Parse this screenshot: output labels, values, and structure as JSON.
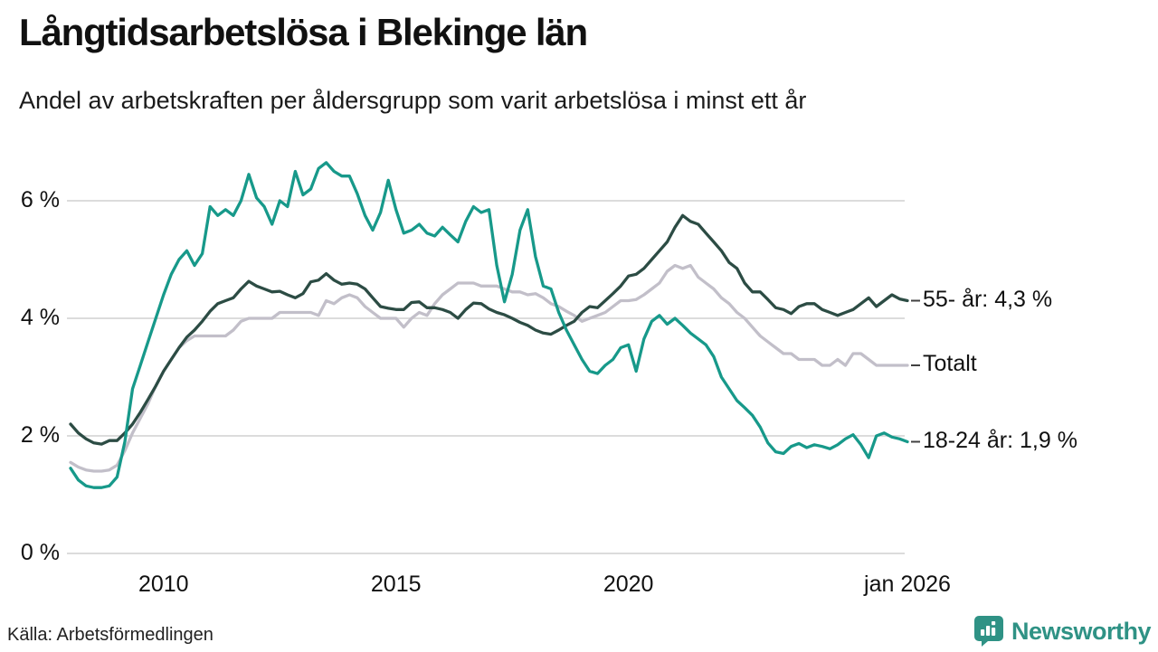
{
  "header": {
    "title": "Långtidsarbetslösa i Blekinge län",
    "subtitle": "Andel av arbetskraften per åldersgrupp som varit arbetslösa i minst ett år"
  },
  "footer": {
    "source": "Källa: Arbetsförmedlingen",
    "brand": "Newsworthy"
  },
  "colors": {
    "series_55": "#2c4c44",
    "series_total": "#c2bfc9",
    "series_18_24": "#17998a",
    "gridline": "#dcdcdc",
    "tick_dash": "#404040",
    "text": "#111111",
    "brand_teal": "#2f9285"
  },
  "chart_data": {
    "type": "line",
    "title": "Långtidsarbetslösa i Blekinge län",
    "subtitle": "Andel av arbetskraften per åldersgrupp som varit arbetslösa i minst ett år",
    "unit": "%",
    "x_start_year": 2008.0,
    "x_step_months": 2,
    "x_axis": {
      "range": [
        2008,
        2026
      ],
      "ticks": [
        {
          "year": 2010,
          "label": "2010"
        },
        {
          "year": 2015,
          "label": "2015"
        },
        {
          "year": 2020,
          "label": "2020"
        },
        {
          "year": 2026,
          "label": "jan 2026"
        }
      ]
    },
    "y_axis": {
      "range": [
        0,
        7
      ],
      "grid": true,
      "ticks": [
        {
          "value": 0,
          "label": "0 %"
        },
        {
          "value": 2,
          "label": "2 %"
        },
        {
          "value": 4,
          "label": "4 %"
        },
        {
          "value": 6,
          "label": "6 %"
        }
      ]
    },
    "legend_position": "right-end-labels",
    "series": [
      {
        "name": "55- år",
        "end_label": "55- år: 4,3 %",
        "last_value": 4.3,
        "color": "#2c4c44",
        "z": 2,
        "values": [
          2.2,
          2.05,
          1.95,
          1.88,
          1.86,
          1.92,
          1.92,
          2.05,
          2.2,
          2.4,
          2.62,
          2.85,
          3.1,
          3.3,
          3.5,
          3.68,
          3.8,
          3.95,
          4.12,
          4.25,
          4.3,
          4.35,
          4.5,
          4.63,
          4.55,
          4.5,
          4.45,
          4.46,
          4.4,
          4.35,
          4.42,
          4.62,
          4.65,
          4.76,
          4.65,
          4.58,
          4.6,
          4.58,
          4.5,
          4.35,
          4.2,
          4.17,
          4.15,
          4.15,
          4.27,
          4.28,
          4.18,
          4.18,
          4.15,
          4.1,
          4.0,
          4.15,
          4.26,
          4.25,
          4.16,
          4.1,
          4.06,
          4.0,
          3.93,
          3.88,
          3.8,
          3.75,
          3.73,
          3.8,
          3.88,
          3.95,
          4.1,
          4.2,
          4.18,
          4.3,
          4.42,
          4.55,
          4.72,
          4.75,
          4.85,
          5.0,
          5.15,
          5.3,
          5.55,
          5.75,
          5.65,
          5.6,
          5.45,
          5.3,
          5.15,
          4.95,
          4.85,
          4.6,
          4.45,
          4.45,
          4.32,
          4.18,
          4.15,
          4.08,
          4.2,
          4.25,
          4.25,
          4.15,
          4.1,
          4.05,
          4.1,
          4.15,
          4.25,
          4.35,
          4.2,
          4.3,
          4.4,
          4.33,
          4.3
        ]
      },
      {
        "name": "Totalt",
        "end_label": "Totalt",
        "last_value": 3.2,
        "color": "#c2bfc9",
        "z": 1,
        "values": [
          1.55,
          1.47,
          1.42,
          1.4,
          1.4,
          1.42,
          1.5,
          1.75,
          2.05,
          2.3,
          2.55,
          2.85,
          3.1,
          3.3,
          3.5,
          3.62,
          3.7,
          3.7,
          3.7,
          3.7,
          3.7,
          3.8,
          3.95,
          4.0,
          4.0,
          4.0,
          4.0,
          4.1,
          4.1,
          4.1,
          4.1,
          4.1,
          4.05,
          4.3,
          4.25,
          4.35,
          4.4,
          4.35,
          4.2,
          4.1,
          4.0,
          4.0,
          4.0,
          3.85,
          4.0,
          4.1,
          4.05,
          4.25,
          4.4,
          4.5,
          4.6,
          4.6,
          4.6,
          4.55,
          4.55,
          4.55,
          4.5,
          4.45,
          4.45,
          4.4,
          4.42,
          4.35,
          4.25,
          4.2,
          4.12,
          4.05,
          3.95,
          4.0,
          4.05,
          4.1,
          4.2,
          4.3,
          4.3,
          4.32,
          4.4,
          4.5,
          4.6,
          4.8,
          4.9,
          4.85,
          4.9,
          4.7,
          4.6,
          4.5,
          4.35,
          4.25,
          4.1,
          4.0,
          3.85,
          3.7,
          3.6,
          3.5,
          3.4,
          3.4,
          3.3,
          3.3,
          3.3,
          3.2,
          3.2,
          3.3,
          3.2,
          3.4,
          3.4,
          3.3,
          3.2,
          3.2,
          3.2,
          3.2,
          3.2
        ]
      },
      {
        "name": "18-24 år",
        "end_label": "18-24 år: 1,9 %",
        "last_value": 1.9,
        "color": "#17998a",
        "z": 3,
        "values": [
          1.45,
          1.25,
          1.15,
          1.12,
          1.12,
          1.15,
          1.3,
          1.9,
          2.8,
          3.2,
          3.6,
          4.0,
          4.4,
          4.75,
          5.0,
          5.15,
          4.9,
          5.1,
          5.9,
          5.75,
          5.85,
          5.75,
          6.0,
          6.45,
          6.05,
          5.9,
          5.6,
          6.0,
          5.9,
          6.5,
          6.1,
          6.2,
          6.55,
          6.65,
          6.5,
          6.42,
          6.42,
          6.12,
          5.75,
          5.5,
          5.8,
          6.35,
          5.85,
          5.45,
          5.5,
          5.6,
          5.45,
          5.4,
          5.55,
          5.42,
          5.3,
          5.65,
          5.9,
          5.8,
          5.85,
          4.9,
          4.28,
          4.75,
          5.5,
          5.85,
          5.05,
          4.55,
          4.5,
          4.1,
          3.8,
          3.55,
          3.3,
          3.1,
          3.06,
          3.2,
          3.3,
          3.5,
          3.55,
          3.1,
          3.65,
          3.95,
          4.05,
          3.9,
          4.0,
          3.88,
          3.75,
          3.65,
          3.55,
          3.35,
          3.0,
          2.8,
          2.6,
          2.48,
          2.35,
          2.15,
          1.88,
          1.73,
          1.7,
          1.82,
          1.87,
          1.8,
          1.85,
          1.82,
          1.78,
          1.85,
          1.95,
          2.02,
          1.85,
          1.63,
          2.0,
          2.05,
          1.98,
          1.95,
          1.9
        ]
      }
    ]
  }
}
